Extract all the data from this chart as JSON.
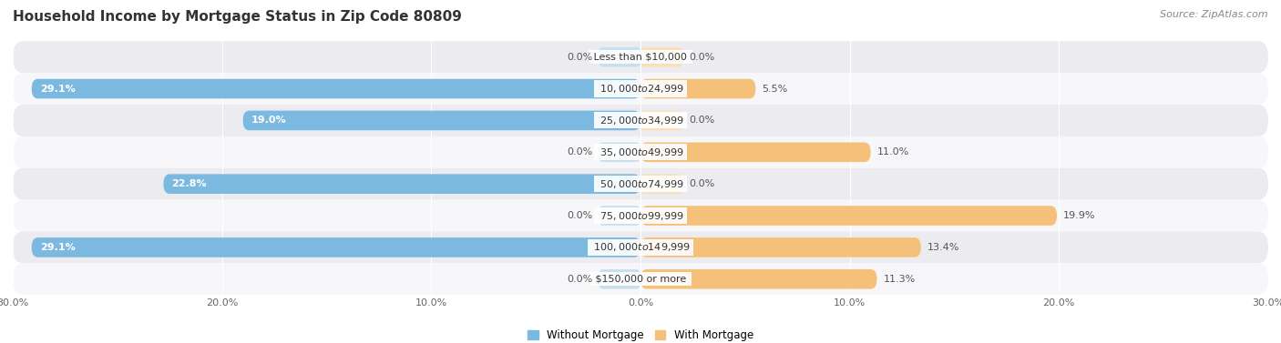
{
  "title": "Household Income by Mortgage Status in Zip Code 80809",
  "source": "Source: ZipAtlas.com",
  "categories": [
    "Less than $10,000",
    "$10,000 to $24,999",
    "$25,000 to $34,999",
    "$35,000 to $49,999",
    "$50,000 to $74,999",
    "$75,000 to $99,999",
    "$100,000 to $149,999",
    "$150,000 or more"
  ],
  "without_mortgage": [
    0.0,
    29.1,
    19.0,
    0.0,
    22.8,
    0.0,
    29.1,
    0.0
  ],
  "with_mortgage": [
    0.0,
    5.5,
    0.0,
    11.0,
    0.0,
    19.9,
    13.4,
    11.3
  ],
  "color_without": "#7cb9e0",
  "color_with": "#f5c07a",
  "color_without_zero": "#c8dff0",
  "color_with_zero": "#fae0b8",
  "background_row_odd": "#ebebf0",
  "background_row_even": "#f7f7fa",
  "xlim": 30.0,
  "legend_without": "Without Mortgage",
  "legend_with": "With Mortgage",
  "title_fontsize": 11,
  "source_fontsize": 8,
  "label_fontsize": 8,
  "tick_fontsize": 8,
  "cat_fontsize": 8,
  "bar_height": 0.62,
  "fig_width": 14.06,
  "fig_height": 3.77
}
